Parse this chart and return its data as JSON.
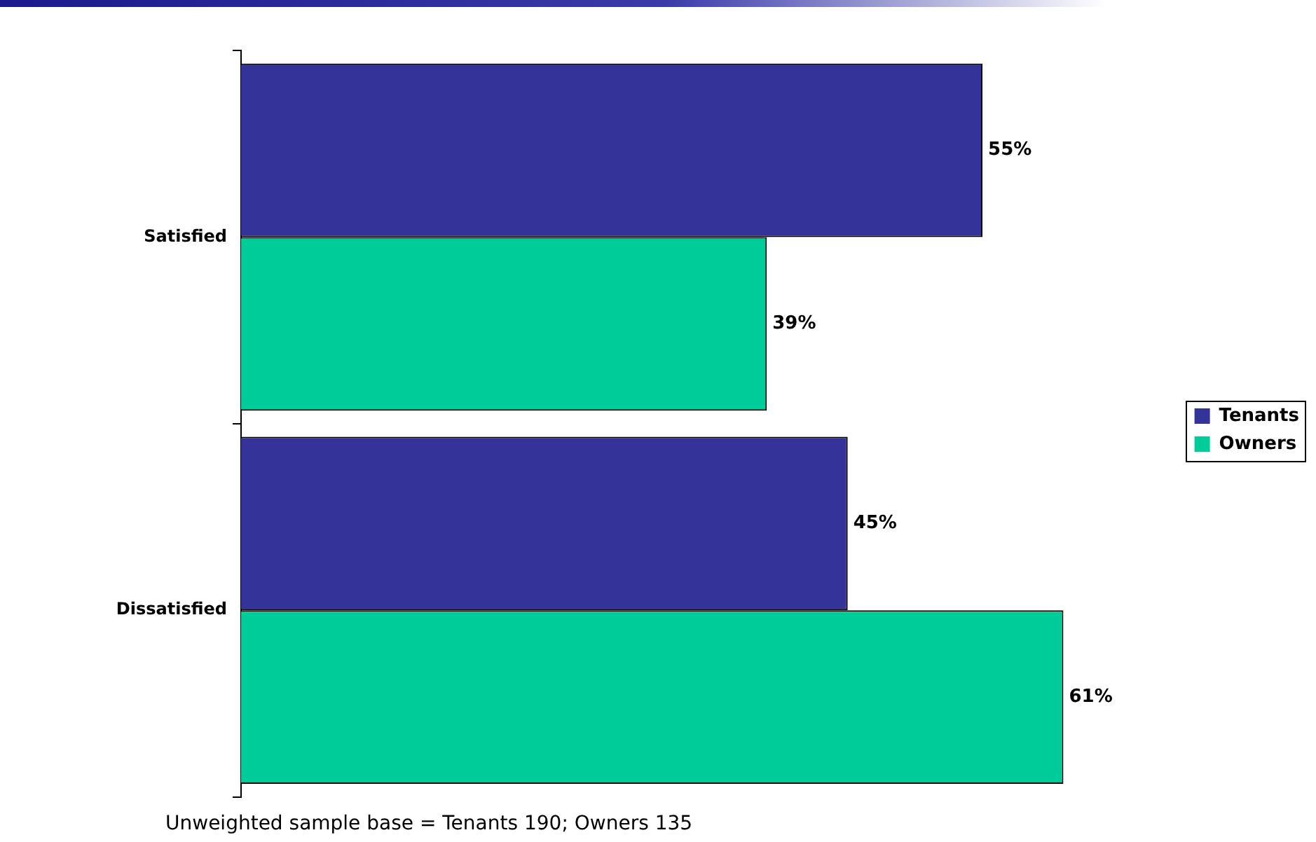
{
  "chart_data": {
    "type": "bar",
    "orientation": "horizontal",
    "categories": [
      "Satisfied",
      "Dissatisfied"
    ],
    "series": [
      {
        "name": "Tenants",
        "color": "#333399",
        "values": [
          55,
          45
        ],
        "value_labels": [
          "55%",
          "45%"
        ]
      },
      {
        "name": "Owners",
        "color": "#00cc99",
        "values": [
          39,
          61
        ],
        "value_labels": [
          "39%",
          "61%"
        ]
      }
    ],
    "tick_labels": "y",
    "legend": "right",
    "annotations": [
      "Unweighted sample base = Tenants 190; Owners 135"
    ]
  }
}
